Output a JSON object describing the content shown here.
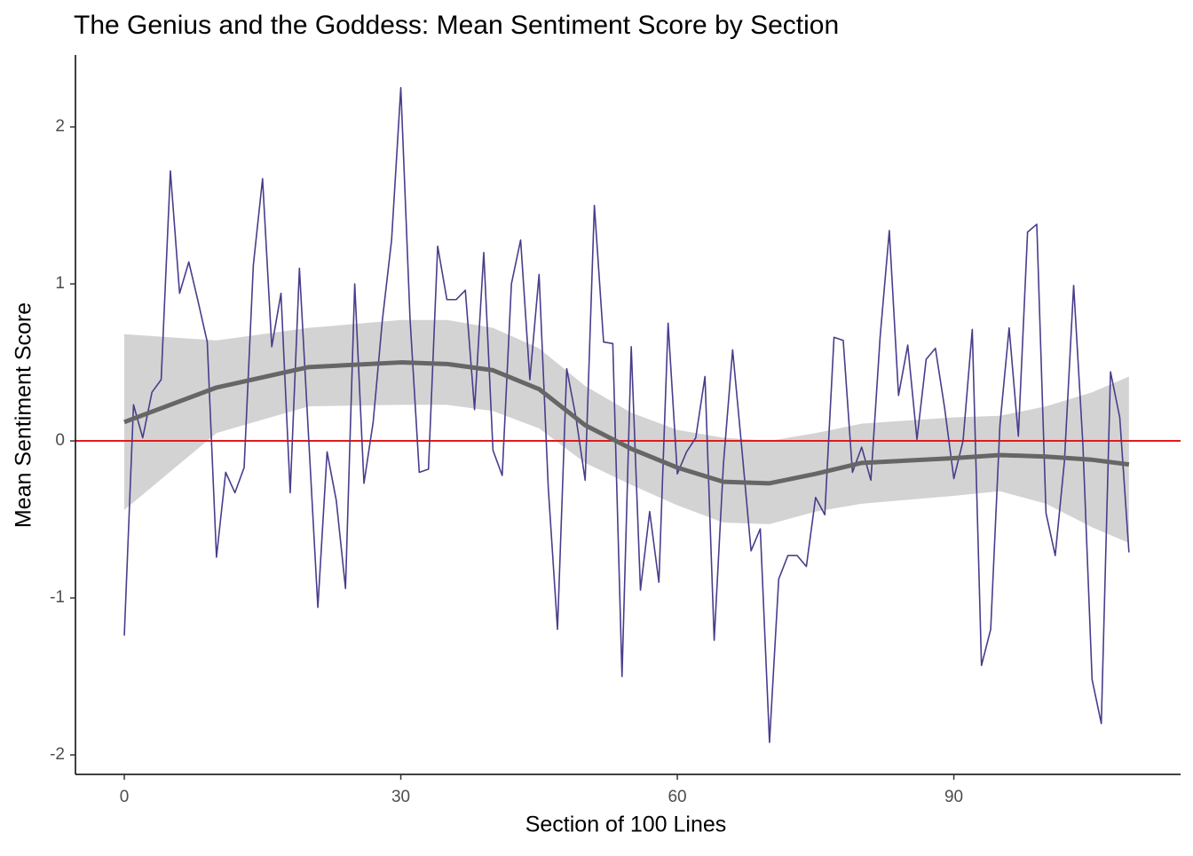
{
  "chart_data": {
    "type": "line",
    "title": "The Genius and the Goddess: Mean Sentiment Score by Section",
    "x_label": "Section of 100 Lines",
    "y_label": "Mean Sentiment Score",
    "x": [
      0,
      1,
      2,
      3,
      4,
      5,
      6,
      7,
      8,
      9,
      10,
      11,
      12,
      13,
      14,
      15,
      16,
      17,
      18,
      19,
      20,
      21,
      22,
      23,
      24,
      25,
      26,
      27,
      28,
      29,
      30,
      31,
      32,
      33,
      34,
      35,
      36,
      37,
      38,
      39,
      40,
      41,
      42,
      43,
      44,
      45,
      46,
      47,
      48,
      49,
      50,
      51,
      52,
      53,
      54,
      55,
      56,
      57,
      58,
      59,
      60,
      61,
      62,
      63,
      64,
      65,
      66,
      67,
      68,
      69,
      70,
      71,
      72,
      73,
      74,
      75,
      76,
      77,
      78,
      79,
      80,
      81,
      82,
      83,
      84,
      85,
      86,
      87,
      88,
      89,
      90,
      91,
      92,
      93,
      94,
      95,
      96,
      97,
      98,
      99,
      100,
      101,
      102,
      103,
      104,
      105,
      106,
      107,
      108,
      109
    ],
    "series": [
      {
        "color": "#483d8b",
        "values": [
          -1.24,
          0.23,
          0.02,
          0.31,
          0.39,
          1.72,
          0.94,
          1.14,
          0.89,
          0.63,
          -0.74,
          -0.2,
          -0.33,
          -0.17,
          1.12,
          1.67,
          0.6,
          0.94,
          -0.33,
          1.1,
          0.02,
          -1.06,
          -0.07,
          -0.38,
          -0.94,
          1.0,
          -0.27,
          0.12,
          0.77,
          1.28,
          2.25,
          0.78,
          -0.2,
          -0.18,
          1.24,
          0.9,
          0.9,
          0.96,
          0.2,
          1.2,
          -0.06,
          -0.22,
          1.0,
          1.28,
          0.39,
          1.06,
          -0.3,
          -1.2,
          0.46,
          0.15,
          -0.25,
          1.5,
          0.63,
          0.62,
          -1.5,
          0.6,
          -0.95,
          -0.45,
          -0.9,
          0.75,
          -0.21,
          -0.07,
          0.02,
          0.41,
          -1.27,
          -0.15,
          0.58,
          -0.05,
          -0.7,
          -0.56,
          -1.92,
          -0.88,
          -0.73,
          -0.73,
          -0.8,
          -0.36,
          -0.47,
          0.66,
          0.64,
          -0.2,
          -0.04,
          -0.25,
          0.66,
          1.34,
          0.29,
          0.61,
          0.01,
          0.52,
          0.59,
          0.21,
          -0.24,
          0.0,
          0.71,
          -1.43,
          -1.2,
          0.1,
          0.72,
          0.03,
          1.33,
          1.38,
          -0.46,
          -0.73,
          -0.13,
          0.99,
          -0.02,
          -1.52,
          -1.8,
          0.44,
          0.15,
          -0.71
        ]
      }
    ],
    "smooth": {
      "color": "#666666",
      "band_color": "#d3d3d3",
      "x": [
        0,
        10,
        20,
        30,
        35,
        40,
        45,
        50,
        55,
        60,
        65,
        70,
        75,
        80,
        90,
        95,
        100,
        105,
        109
      ],
      "values": [
        0.12,
        0.34,
        0.47,
        0.5,
        0.49,
        0.45,
        0.33,
        0.1,
        -0.05,
        -0.17,
        -0.26,
        -0.27,
        -0.21,
        -0.14,
        -0.11,
        -0.09,
        -0.1,
        -0.12,
        -0.15
      ],
      "lower": [
        -0.44,
        0.05,
        0.22,
        0.23,
        0.23,
        0.19,
        0.08,
        -0.14,
        -0.28,
        -0.41,
        -0.52,
        -0.53,
        -0.45,
        -0.4,
        -0.35,
        -0.32,
        -0.4,
        -0.55,
        -0.65
      ],
      "upper": [
        0.68,
        0.64,
        0.72,
        0.77,
        0.77,
        0.72,
        0.59,
        0.35,
        0.18,
        0.07,
        0.02,
        0.0,
        0.05,
        0.11,
        0.15,
        0.16,
        0.22,
        0.31,
        0.41
      ]
    },
    "hline": {
      "value": 0,
      "color": "#e31a1c"
    },
    "xlim": [
      -5.3,
      114.6
    ],
    "ylim": [
      -2.124,
      2.458
    ],
    "xticks": [
      0,
      30,
      60,
      90
    ],
    "yticks": [
      -2,
      -1,
      0,
      1,
      2
    ]
  }
}
